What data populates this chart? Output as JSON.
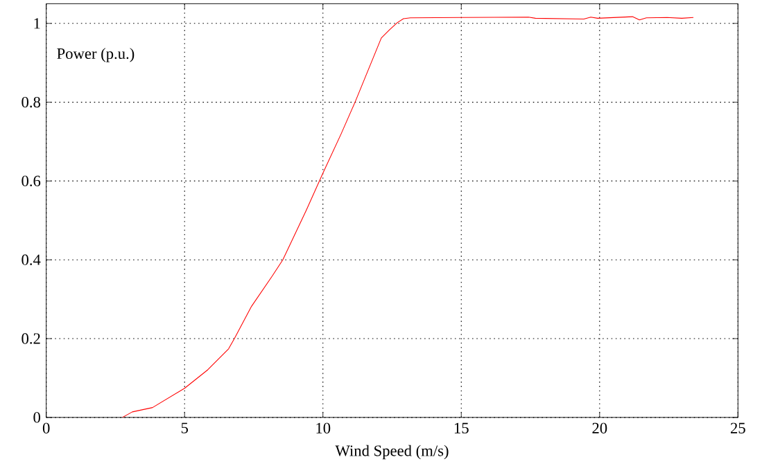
{
  "chart_data": {
    "type": "line",
    "xlabel": "Wind Speed (m/s)",
    "ylabel": "Power (p.u.)",
    "x": [
      2.75,
      3.11,
      3.84,
      5.0,
      5.84,
      6.59,
      6.8,
      7.42,
      8.17,
      8.55,
      9.4,
      10.0,
      10.66,
      11.16,
      12.11,
      12.41,
      12.69,
      12.91,
      13.16,
      15.0,
      17.43,
      17.68,
      19.43,
      19.68,
      19.93,
      21.19,
      21.44,
      21.69,
      22.44,
      22.97,
      23.39
    ],
    "series": [
      {
        "color": "#ff0000",
        "values": [
          0,
          0.014,
          0.025,
          0.074,
          0.121,
          0.174,
          0.2,
          0.282,
          0.359,
          0.4,
          0.526,
          0.62,
          0.72,
          0.8,
          0.963,
          0.984,
          1.002,
          1.012,
          1.014,
          1.015,
          1.016,
          1.013,
          1.011,
          1.016,
          1.013,
          1.017,
          1.009,
          1.014,
          1.015,
          1.013,
          1.015
        ]
      }
    ],
    "xlim": [
      0,
      25
    ],
    "ylim": [
      0,
      1.05
    ],
    "xticks": [
      0,
      5,
      10,
      15,
      20,
      25
    ],
    "yticks": [
      0,
      0.2,
      0.4,
      0.6,
      0.8,
      1
    ],
    "grid": true,
    "marker": "none",
    "line_style": "solid"
  }
}
